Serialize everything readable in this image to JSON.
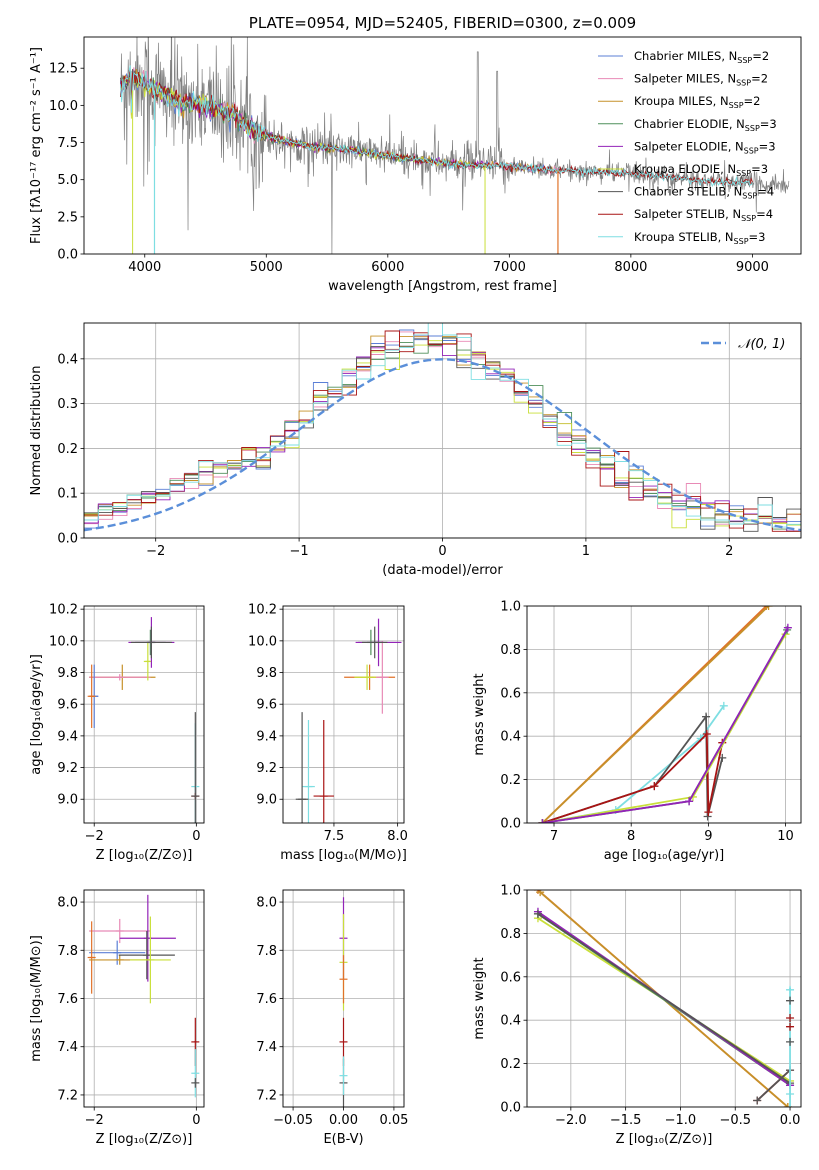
{
  "colors": {
    "Chabrier MILES": "#5b7fd6",
    "Salpeter MILES": "#e88ab6",
    "Kroupa MILES": "#c6912a",
    "Chabrier ELODIE": "#4f8f5a",
    "Salpeter ELODIE": "#9323b8",
    "Kroupa ELODIE": "#c9df3a",
    "Chabrier STELIB": "#555555",
    "Salpeter STELIB": "#a81414",
    "Kroupa STELIB": "#7edee2",
    "data": "#808080",
    "gauss": "#5b8fd9",
    "orange": "#e0722a"
  },
  "chart_data": [
    {
      "id": "spectrum",
      "type": "line",
      "title": "PLATE=0954, MJD=52405, FIBERID=0300, z=0.009",
      "xlabel": "wavelength [Angstrom, rest frame]",
      "ylabel": "Flux [fλ10⁻¹⁷ erg cm⁻² s⁻¹ A⁻¹]",
      "xlim": [
        3500,
        9400
      ],
      "ylim": [
        0,
        14.6
      ],
      "xticks": [
        4000,
        5000,
        6000,
        7000,
        8000,
        9000
      ],
      "yticks": [
        "0.0",
        "2.5",
        "5.0",
        "7.5",
        "10.0",
        "12.5"
      ],
      "grid": false,
      "legend_position": "top-right",
      "legend": [
        {
          "name": "Chabrier MILES",
          "sub": "SSP",
          "n": "=2"
        },
        {
          "name": "Salpeter MILES",
          "sub": "SSP",
          "n": "=2"
        },
        {
          "name": "Kroupa MILES",
          "sub": "SSP",
          "n": "=2"
        },
        {
          "name": "Chabrier ELODIE",
          "sub": "SSP",
          "n": "=3"
        },
        {
          "name": "Salpeter ELODIE",
          "sub": "SSP",
          "n": "=3"
        },
        {
          "name": "Kroupa ELODIE",
          "sub": "SSP",
          "n": "=3"
        },
        {
          "name": "Chabrier STELIB",
          "sub": "SSP",
          "n": "=4"
        },
        {
          "name": "Salpeter STELIB",
          "sub": "SSP",
          "n": "=4"
        },
        {
          "name": "Kroupa STELIB",
          "sub": "SSP",
          "n": "=3"
        }
      ],
      "continuum": [
        [
          3800,
          11.2
        ],
        [
          3900,
          12.0
        ],
        [
          4000,
          11.5
        ],
        [
          4100,
          11.0
        ],
        [
          4300,
          10.2
        ],
        [
          4500,
          10.0
        ],
        [
          4700,
          9.5
        ],
        [
          4900,
          8.3
        ],
        [
          5100,
          7.7
        ],
        [
          5400,
          7.2
        ],
        [
          5700,
          7.0
        ],
        [
          6000,
          6.6
        ],
        [
          6300,
          6.3
        ],
        [
          6600,
          6.0
        ],
        [
          7000,
          5.9
        ],
        [
          7400,
          5.6
        ],
        [
          7800,
          5.5
        ],
        [
          8200,
          5.3
        ],
        [
          8600,
          4.9
        ],
        [
          9000,
          4.8
        ],
        [
          9300,
          4.6
        ]
      ],
      "model_end": {
        "Chabrier MILES": 7400,
        "Salpeter MILES": 7400,
        "Kroupa MILES": 7400,
        "Chabrier ELODIE": 6800,
        "Salpeter ELODIE": 6800,
        "Kroupa ELODIE": 6800,
        "Chabrier STELIB": 9000,
        "Salpeter STELIB": 9000,
        "Kroupa STELIB": 9000
      }
    },
    {
      "id": "residuals",
      "type": "step",
      "xlabel": "(data-model)/error",
      "ylabel": "Normed distribution",
      "xlim": [
        -2.5,
        2.5
      ],
      "ylim": [
        0,
        0.48
      ],
      "xticks": [
        "−2",
        "−1",
        "0",
        "1",
        "2"
      ],
      "yticks": [
        "0.0",
        "0.1",
        "0.2",
        "0.3",
        "0.4"
      ],
      "grid": true,
      "legend_position": "top-right",
      "gauss_label": "𝒩(0, 1)",
      "bin_width": 0.1
    },
    {
      "id": "age-vs-Z",
      "type": "errorbar",
      "xlabel": "Z [log₁₀(Z/Z⊙)]",
      "ylabel": "age  [log₁₀(age/yr)]",
      "xlim": [
        -2.2,
        0.15
      ],
      "ylim": [
        8.85,
        10.22
      ],
      "xticks": [
        "−2",
        "0"
      ],
      "yticks": [
        "9.0",
        "9.2",
        "9.4",
        "9.6",
        "9.8",
        "10.0",
        "10.2"
      ],
      "grid": true,
      "points": [
        {
          "s": "Kroupa MILES",
          "x": -1.45,
          "xe": 0.65,
          "y": 9.77,
          "ye": 0.08
        },
        {
          "s": "Salpeter MILES",
          "x": -1.5,
          "xe": 0.6,
          "y": 9.77,
          "ye": 0.02
        },
        {
          "s": "Chabrier MILES",
          "x": -2.0,
          "xe": 0.08,
          "y": 9.65,
          "ye": 0.2
        },
        {
          "s": "orange",
          "x": -2.05,
          "xe": 0.05,
          "y": 9.65,
          "ye": 0.2
        },
        {
          "s": "Kroupa ELODIE",
          "x": -0.95,
          "xe": 0.05,
          "y": 9.87,
          "ye": 0.12
        },
        {
          "s": "Chabrier ELODIE",
          "x": -0.9,
          "xe": 0.3,
          "y": 9.99,
          "ye": 0.08
        },
        {
          "s": "Salpeter ELODIE",
          "x": -0.88,
          "xe": 0.45,
          "y": 9.99,
          "ye": 0.16
        },
        {
          "s": "Chabrier STELIB",
          "x": -0.88,
          "xe": 0.4,
          "y": 9.99,
          "ye": 0.1
        },
        {
          "s": "Kroupa STELIB",
          "x": -0.02,
          "xe": 0.02,
          "y": 9.08,
          "ye": 0.4
        },
        {
          "s": "Salpeter STELIB",
          "x": -0.02,
          "xe": 0.02,
          "y": 9.02,
          "ye": 0.02
        },
        {
          "s": "Chabrier STELIB",
          "x": -0.02,
          "xe": 0.02,
          "y": 9.02,
          "ye": 0.53
        }
      ]
    },
    {
      "id": "age-vs-mass",
      "type": "errorbar",
      "xlabel": "mass [log₁₀(M/M⊙)]",
      "ylabel": "",
      "xlim": [
        7.1,
        8.05
      ],
      "ylim": [
        8.85,
        10.22
      ],
      "xticks": [
        "7.5",
        "8.0"
      ],
      "yticks": [
        "9.0",
        "9.2",
        "9.4",
        "9.6",
        "9.8",
        "10.0",
        "10.2"
      ],
      "grid": true,
      "points": [
        {
          "s": "Kroupa STELIB",
          "x": 7.3,
          "xe": 0.05,
          "y": 9.08,
          "ye": 0.42
        },
        {
          "s": "Chabrier STELIB",
          "x": 7.25,
          "xe": 0.05,
          "y": 9.0,
          "ye": 0.55
        },
        {
          "s": "Salpeter STELIB",
          "x": 7.42,
          "xe": 0.08,
          "y": 9.02,
          "ye": 0.48
        },
        {
          "s": "orange",
          "x": 7.78,
          "xe": 0.2,
          "y": 9.77,
          "ye": 0.08
        },
        {
          "s": "Kroupa ELODIE",
          "x": 7.76,
          "xe": 0.1,
          "y": 9.77,
          "ye": 0.08
        },
        {
          "s": "Salpeter MILES",
          "x": 7.88,
          "xe": 0.05,
          "y": 9.77,
          "ye": 0.23
        },
        {
          "s": "Chabrier ELODIE",
          "x": 7.79,
          "xe": 0.1,
          "y": 9.99,
          "ye": 0.08
        },
        {
          "s": "Salpeter ELODIE",
          "x": 7.85,
          "xe": 0.18,
          "y": 9.99,
          "ye": 0.15
        },
        {
          "s": "Chabrier STELIB",
          "x": 7.82,
          "xe": 0.1,
          "y": 9.99,
          "ye": 0.1
        }
      ]
    },
    {
      "id": "weight-vs-age",
      "type": "line",
      "xlabel": "age  [log₁₀(age/yr)]",
      "ylabel": "mass weight",
      "xlim": [
        6.65,
        10.2
      ],
      "ylim": [
        0,
        1
      ],
      "xticks": [
        "7",
        "8",
        "9",
        "10"
      ],
      "yticks": [
        "0.0",
        "0.2",
        "0.4",
        "0.6",
        "0.8",
        "1.0"
      ],
      "grid": true,
      "series": [
        {
          "s": "orange",
          "x": [
            6.85,
            9.75
          ],
          "y": [
            0.0,
            1.0
          ]
        },
        {
          "s": "Kroupa MILES",
          "x": [
            6.85,
            9.78
          ],
          "y": [
            0.0,
            1.0
          ]
        },
        {
          "s": "Kroupa STELIB",
          "x": [
            6.85,
            7.8,
            8.9,
            9.2
          ],
          "y": [
            0.0,
            0.06,
            0.39,
            0.54
          ]
        },
        {
          "s": "Chabrier STELIB",
          "x": [
            6.85,
            8.3,
            8.97,
            8.99,
            9.18
          ],
          "y": [
            0.0,
            0.17,
            0.49,
            0.03,
            0.3
          ]
        },
        {
          "s": "Salpeter STELIB",
          "x": [
            6.85,
            8.3,
            8.98,
            9.0,
            9.18
          ],
          "y": [
            0.0,
            0.17,
            0.41,
            0.05,
            0.37
          ]
        },
        {
          "s": "Kroupa ELODIE",
          "x": [
            6.85,
            8.8,
            10.0
          ],
          "y": [
            0.0,
            0.12,
            0.87
          ]
        },
        {
          "s": "Chabrier ELODIE",
          "x": [
            6.85,
            8.75,
            10.02
          ],
          "y": [
            0.0,
            0.1,
            0.89
          ]
        },
        {
          "s": "Salpeter ELODIE",
          "x": [
            6.85,
            8.75,
            10.03
          ],
          "y": [
            0.0,
            0.1,
            0.9
          ]
        }
      ]
    },
    {
      "id": "mass-vs-Z",
      "type": "errorbar",
      "xlabel": "Z [log₁₀(Z/Z⊙)]",
      "ylabel": "mass [log₁₀(M/M⊙)]",
      "xlim": [
        -2.2,
        0.15
      ],
      "ylim": [
        7.15,
        8.05
      ],
      "xticks": [
        "−2",
        "0"
      ],
      "yticks": [
        "7.2",
        "7.4",
        "7.6",
        "7.8",
        "8.0"
      ],
      "grid": true,
      "points": [
        {
          "s": "Salpeter MILES",
          "x": -1.5,
          "xe": 0.6,
          "y": 7.88,
          "ye": 0.05
        },
        {
          "s": "Chabrier MILES",
          "x": -1.55,
          "xe": 0.55,
          "y": 7.79,
          "ye": 0.05
        },
        {
          "s": "orange",
          "x": -2.05,
          "xe": 0.05,
          "y": 7.77,
          "ye": 0.15
        },
        {
          "s": "Kroupa MILES",
          "x": -1.5,
          "xe": 0.6,
          "y": 7.76,
          "ye": 0.02
        },
        {
          "s": "Salpeter ELODIE",
          "x": -0.95,
          "xe": 0.55,
          "y": 7.85,
          "ye": 0.18
        },
        {
          "s": "Chabrier STELIB",
          "x": -0.97,
          "xe": 0.55,
          "y": 7.78,
          "ye": 0.1
        },
        {
          "s": "Kroupa ELODIE",
          "x": -0.9,
          "xe": 0.4,
          "y": 7.76,
          "ye": 0.18
        },
        {
          "s": "Salpeter STELIB",
          "x": -0.02,
          "xe": 0.02,
          "y": 7.42,
          "ye": 0.1
        },
        {
          "s": "Kroupa STELIB",
          "x": -0.02,
          "xe": 0.02,
          "y": 7.29,
          "ye": 0.1
        },
        {
          "s": "Chabrier STELIB",
          "x": -0.02,
          "xe": 0.02,
          "y": 7.25,
          "ye": 0.02
        }
      ]
    },
    {
      "id": "mass-vs-ebv",
      "type": "errorbar",
      "xlabel": "E(B-V)",
      "ylabel": "",
      "xlim": [
        -0.06,
        0.06
      ],
      "ylim": [
        7.15,
        8.05
      ],
      "xticks": [
        "−0.05",
        "0.00",
        "0.05"
      ],
      "yticks": [
        "7.2",
        "7.4",
        "7.6",
        "7.8",
        "8.0"
      ],
      "grid": true,
      "points": [
        {
          "s": "Salpeter ELODIE",
          "x": 0,
          "xe": 0,
          "y": 7.85,
          "ye": 0.17
        },
        {
          "s": "Kroupa ELODIE",
          "x": 0,
          "xe": 0,
          "y": 7.75,
          "ye": 0.2
        },
        {
          "s": "orange",
          "x": 0,
          "xe": 0,
          "y": 7.68,
          "ye": 0.1
        },
        {
          "s": "Salpeter STELIB",
          "x": 0,
          "xe": 0,
          "y": 7.42,
          "ye": 0.1
        },
        {
          "s": "Chabrier STELIB",
          "x": 0,
          "xe": 0,
          "y": 7.25,
          "ye": 0.1
        },
        {
          "s": "Kroupa STELIB",
          "x": 0,
          "xe": 0,
          "y": 7.28,
          "ye": 0.08
        }
      ]
    },
    {
      "id": "weight-vs-Z",
      "type": "line",
      "xlabel": "Z [log₁₀(Z/Z⊙)]",
      "ylabel": "mass weight",
      "xlim": [
        -2.4,
        0.1
      ],
      "ylim": [
        0,
        1
      ],
      "xticks": [
        "−2.0",
        "−1.5",
        "−1.0",
        "−0.5",
        "0.0"
      ],
      "yticks": [
        "0.0",
        "0.2",
        "0.4",
        "0.6",
        "0.8",
        "1.0"
      ],
      "grid": true,
      "series": [
        {
          "s": "orange",
          "x": [
            -2.3,
            -0.02
          ],
          "y": [
            1.0,
            0.0
          ]
        },
        {
          "s": "Kroupa MILES",
          "x": [
            -2.28,
            -0.02
          ],
          "y": [
            0.99,
            0.0
          ]
        },
        {
          "s": "Kroupa ELODIE",
          "x": [
            -2.3,
            0.0
          ],
          "y": [
            0.87,
            0.12
          ]
        },
        {
          "s": "Chabrier ELODIE",
          "x": [
            -2.3,
            0.0
          ],
          "y": [
            0.89,
            0.1
          ]
        },
        {
          "s": "Salpeter ELODIE",
          "x": [
            -2.3,
            0.0
          ],
          "y": [
            0.9,
            0.1
          ]
        },
        {
          "s": "Chabrier STELIB",
          "x": [
            -2.3,
            0.0
          ],
          "y": [
            0.89,
            0.11
          ]
        },
        {
          "s": "Salpeter STELIB",
          "x": [
            -0.3,
            0.0
          ],
          "y": [
            0.03,
            0.17
          ]
        },
        {
          "s": "Chabrier STELIB",
          "x": [
            -0.3,
            0.0
          ],
          "y": [
            0.03,
            0.17
          ]
        }
      ],
      "z0_points": [
        {
          "s": "Kroupa STELIB",
          "y": 0.54
        },
        {
          "s": "Chabrier STELIB",
          "y": 0.49
        },
        {
          "s": "Salpeter STELIB",
          "y": 0.41
        },
        {
          "s": "Chabrier STELIB",
          "y": 0.3
        },
        {
          "s": "Salpeter STELIB",
          "y": 0.37
        },
        {
          "s": "Kroupa STELIB",
          "y": 0.06
        }
      ]
    }
  ]
}
